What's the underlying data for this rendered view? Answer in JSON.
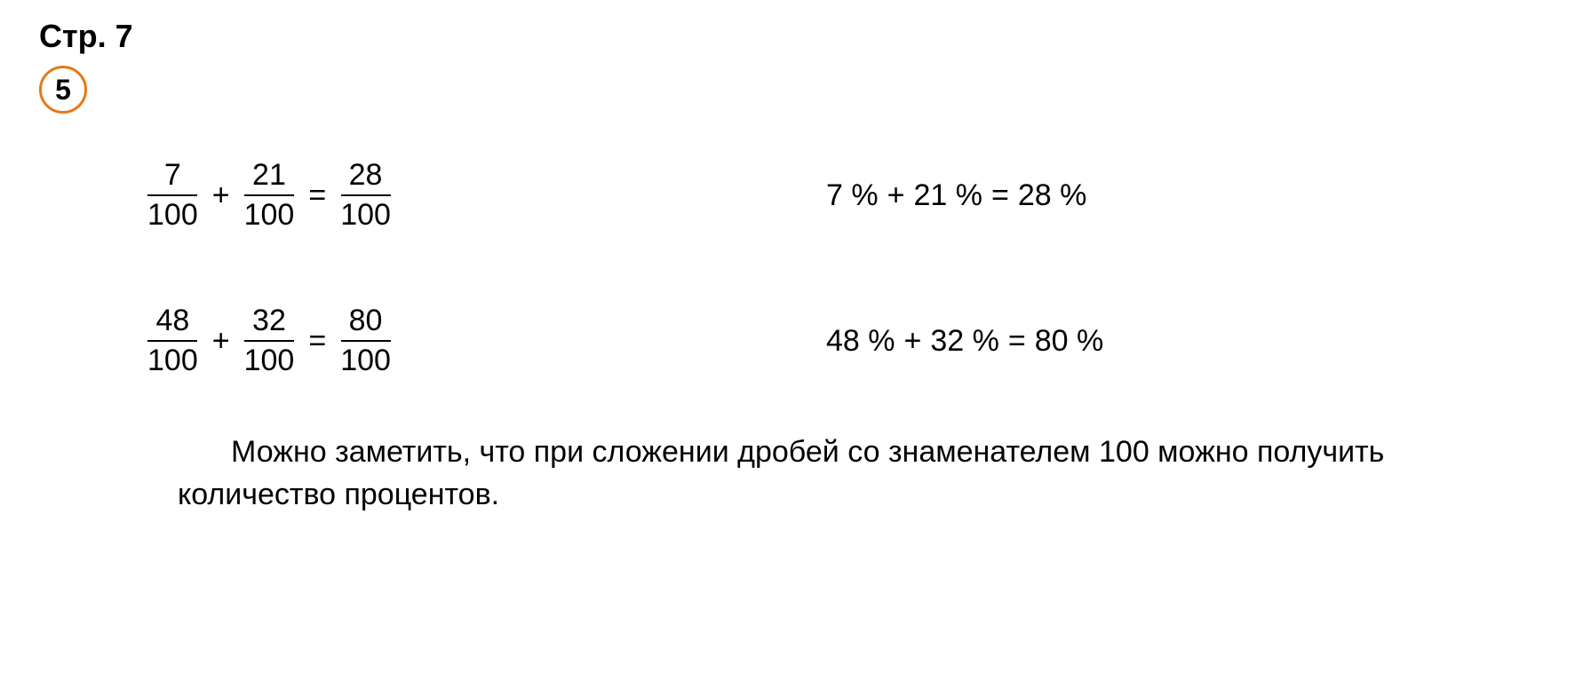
{
  "page_title": "Стр. 7",
  "problem_number": "5",
  "colors": {
    "circle_border": "#e67817",
    "text": "#000000",
    "background": "#ffffff",
    "fraction_line": "#000000"
  },
  "typography": {
    "title_fontsize": 36,
    "title_fontweight": "bold",
    "number_fontsize": 32,
    "number_fontweight": "bold",
    "equation_fontsize": 34,
    "conclusion_fontsize": 34
  },
  "equations": {
    "row1": {
      "fraction": {
        "f1": {
          "num": "7",
          "den": "100"
        },
        "f2": {
          "num": "21",
          "den": "100"
        },
        "result": {
          "num": "28",
          "den": "100"
        },
        "op": "+",
        "eq": "="
      },
      "percent": {
        "left": "7 %",
        "op": "+",
        "right": "21 %",
        "eq": "=",
        "result": "28 %"
      }
    },
    "row2": {
      "fraction": {
        "f1": {
          "num": "48",
          "den": "100"
        },
        "f2": {
          "num": "32",
          "den": "100"
        },
        "result": {
          "num": "80",
          "den": "100"
        },
        "op": "+",
        "eq": "="
      },
      "percent": {
        "left": "48 %",
        "op": "+",
        "right": "32 %",
        "eq": "=",
        "result": "80 %"
      }
    }
  },
  "conclusion": "Можно заметить, что при сложении дробей со знаменателем 100 можно получить количество процентов."
}
